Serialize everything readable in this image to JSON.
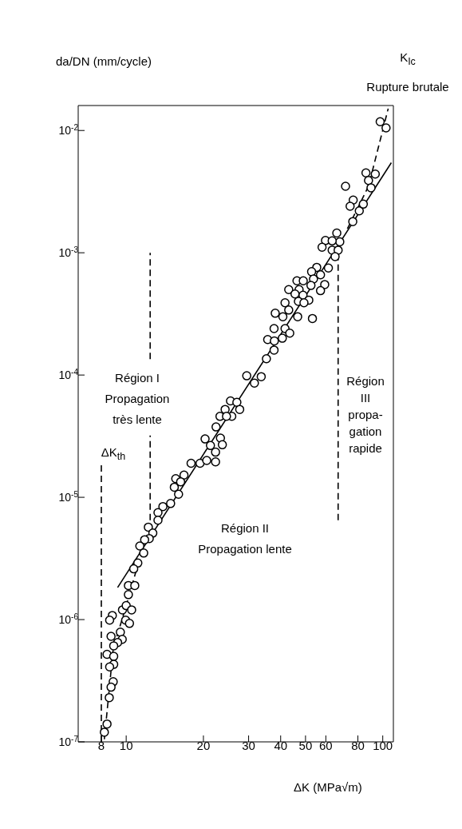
{
  "chart_data": {
    "type": "scatter",
    "ylabel": "da/DN (mm/cycle)",
    "xlabel": "ΔK (MPa√m)",
    "log": "xy",
    "xlim": [
      6.5,
      110
    ],
    "ylim": [
      1e-07,
      0.016
    ],
    "xticks": [
      8,
      10,
      20,
      30,
      40,
      50,
      60,
      80,
      100
    ],
    "yticks": [
      {
        "value": 1e-07,
        "label": "10$^{-7}$"
      },
      {
        "value": 1e-06,
        "label": "10$^{-6}$"
      },
      {
        "value": 1e-05,
        "label": "10$^{-5}$"
      },
      {
        "value": 0.0001,
        "label": "10$^{-4}$"
      },
      {
        "value": 0.001,
        "label": "10$^{-3}$"
      },
      {
        "value": 0.01,
        "label": "10$^{-2}$"
      }
    ],
    "annotations": [
      "Région I\nPropagation\ntrès lente",
      "ΔK$_{th}$",
      "Région II\nPropagation lente",
      "Région\nIII\npropa-\ngation\nrapide",
      "K$_{Ic}$\nRupture brutale"
    ],
    "series": [
      {
        "color": "#000000",
        "marker": "circle",
        "x": [
          97.7,
          103,
          86,
          93.5,
          88,
          90,
          71.6,
          76.7,
          74.6,
          81,
          84,
          76.4,
          66.2,
          68,
          59.8,
          63.5,
          58,
          63.5,
          67,
          65.2,
          61.4,
          55.3,
          52.8,
          57.2,
          53.7,
          46.3,
          49,
          52.5,
          43,
          47.2,
          59.4,
          57.2,
          45.5,
          48.9,
          51.5,
          46.9,
          49.3,
          41.6,
          43,
          38.1,
          40.8,
          46.6,
          53.2,
          37.7,
          41.6,
          43.4,
          35.6,
          37.8,
          40.6,
          37.7,
          35.2,
          29.5,
          33.6,
          31.6,
          25.5,
          27,
          24.3,
          27.7,
          23.2,
          25.8,
          24.6,
          22.4,
          20.3,
          23.3,
          21.3,
          23.7,
          22.3,
          17.9,
          19.4,
          20.6,
          22.3,
          16.8,
          15.6,
          15.4,
          16.3,
          16,
          14.9,
          13.9,
          13.3,
          13.3,
          12.2,
          12.7,
          12.3,
          11.8,
          11.3,
          11.7,
          11.1,
          10.7,
          10.2,
          10.8,
          10.2,
          9.67,
          10,
          10.5,
          9.95,
          10.3,
          8.83,
          8.62,
          9.49,
          9.65,
          9.26,
          8.73,
          8.94,
          8.42,
          8.94,
          8.94,
          8.62,
          8.9,
          8.73,
          8.59,
          8.42,
          8.22
        ],
        "values": [
          0.0118,
          0.0105,
          0.0045,
          0.0044,
          0.0039,
          0.0034,
          0.0035,
          0.0027,
          0.0024,
          0.0022,
          0.0025,
          0.0018,
          0.00145,
          0.00123,
          0.00126,
          0.00125,
          0.00111,
          0.00105,
          0.00105,
          0.00093,
          0.00075,
          0.00076,
          0.0007,
          0.00066,
          0.00061,
          0.00059,
          0.00059,
          0.00054,
          0.0005,
          0.0005,
          0.00055,
          0.00049,
          0.00046,
          0.00045,
          0.00041,
          0.0004,
          0.00039,
          0.00039,
          0.00034,
          0.00032,
          0.0003,
          0.0003,
          0.00029,
          0.00024,
          0.00024,
          0.00022,
          0.000195,
          0.00019,
          0.0002,
          0.00016,
          0.000136,
          9.86e-05,
          9.7e-05,
          8.6e-05,
          6.14e-05,
          5.98e-05,
          5.23e-05,
          5.23e-05,
          4.59e-05,
          4.6e-05,
          4.6e-05,
          3.76e-05,
          3e-05,
          3.05e-05,
          2.65e-05,
          2.69e-05,
          2.34e-05,
          1.9e-05,
          1.9e-05,
          2e-05,
          1.95e-05,
          1.52e-05,
          1.42e-05,
          1.21e-05,
          1.34e-05,
          1.06e-05,
          8.9e-06,
          8.4e-06,
          7.5e-06,
          6.5e-06,
          5.7e-06,
          5.1e-06,
          4.6e-06,
          4.5e-06,
          4e-06,
          3.5e-06,
          2.9e-06,
          2.6e-06,
          1.9e-06,
          1.9e-06,
          1.6e-06,
          1.2e-06,
          1.3e-06,
          1.2e-06,
          9.9e-07,
          9.3e-07,
          1.08e-06,
          9.9e-07,
          7.9e-07,
          6.9e-07,
          6.5e-07,
          7.3e-07,
          6.1e-07,
          5.2e-07,
          5e-07,
          4.3e-07,
          4.1e-07,
          3.1e-07,
          2.8e-07,
          2.3e-07,
          1.4e-07,
          1.2e-07
        ]
      },
      {
        "type": "line",
        "color": "#000000",
        "line_style": "solid",
        "x": [
          9.26,
          108
        ],
        "values": [
          1.83e-06,
          0.00545
        ]
      },
      {
        "type": "line",
        "color": "#000000",
        "line_style": "dashed",
        "x": [
          8.22,
          8.9,
          9.95,
          11.2
        ],
        "values": [
          1.05e-07,
          5.8e-07,
          1.25e-06,
          3e-06
        ]
      },
      {
        "type": "line",
        "color": "#000000",
        "line_style": "dashed",
        "x": [
          72.8,
          88,
          105
        ],
        "values": [
          0.00157,
          0.0035,
          0.0151
        ]
      },
      {
        "type": "line",
        "color": "#000000",
        "line_style": "dashed",
        "x": [
          8,
          8
        ],
        "values": [
          1e-07,
          1.9e-05
        ]
      },
      {
        "type": "line",
        "color": "#000000",
        "line_style": "dashed",
        "x": [
          12.4,
          12.4
        ],
        "values": [
          6.5e-06,
          3.2e-05
        ]
      },
      {
        "type": "line",
        "color": "#000000",
        "line_style": "dashed",
        "x": [
          12.4,
          12.4
        ],
        "values": [
          0.000135,
          0.001
        ]
      },
      {
        "type": "line",
        "color": "#000000",
        "line_style": "dashed",
        "x": [
          67,
          67
        ],
        "values": [
          6.5e-06,
          0.00095
        ]
      }
    ]
  }
}
